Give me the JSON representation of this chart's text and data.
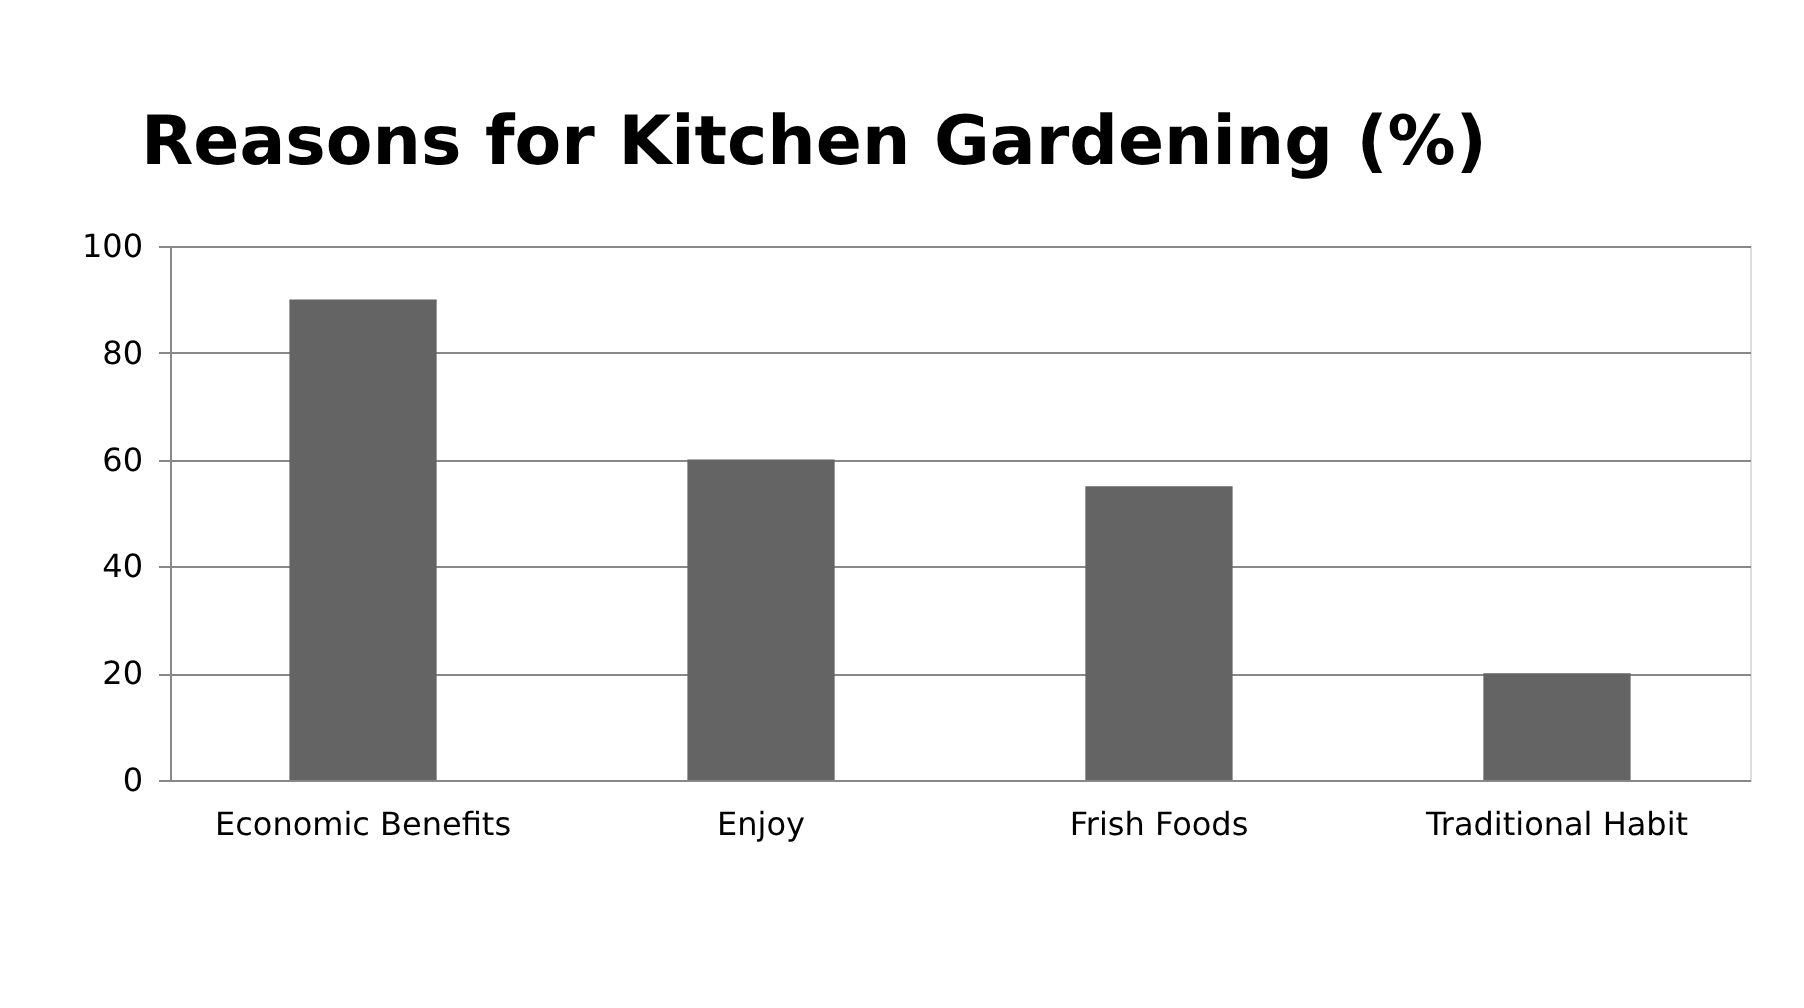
{
  "chart_data": {
    "type": "bar",
    "title": "Reasons for Kitchen Gardening (%)",
    "categories": [
      "Economic Benefits",
      "Enjoy",
      "Frish Foods",
      "Traditional Habit"
    ],
    "values": [
      90,
      60,
      55,
      20
    ],
    "color": "#646464",
    "ylim": [
      0,
      100
    ],
    "yticks": [
      0,
      20,
      40,
      60,
      80,
      100
    ],
    "grid": "y"
  }
}
